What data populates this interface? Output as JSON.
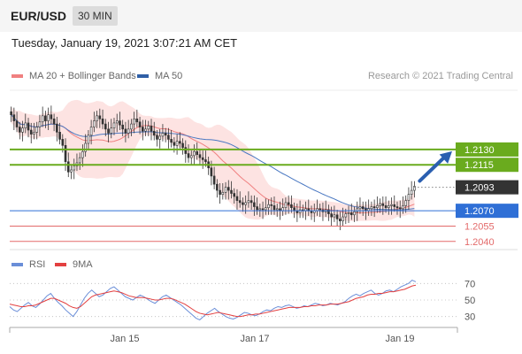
{
  "header": {
    "symbol": "EUR/USD",
    "interval": "30 MIN"
  },
  "timestamp": "Tuesday, January 19, 2021 3:07:21 AM CET",
  "credit": "Research © 2021 Trading Central",
  "colors": {
    "candle_up": "#ffffff",
    "candle_down": "#333333",
    "bollinger_fill": "#fde3e2",
    "ma20": "#f08080",
    "ma50": "#4a78c2",
    "resistance": "#6aab1e",
    "support": "#2f6fd6",
    "minor_level": "#e36a6a",
    "current_price_tag": "#333333",
    "arrow": "#2a5fb0",
    "rsi": "#6a8ed8",
    "rsi_ma": "#e34040"
  },
  "chart_data": [
    {
      "type": "candlestick",
      "legend": [
        {
          "label": "MA 20 + Bollinger Bands",
          "color": "#f08080"
        },
        {
          "label": "MA 50",
          "color": "#2f5fa6"
        }
      ],
      "ylim": [
        1.2032,
        1.2188
      ],
      "x_tick_labels": [
        "Jan 15",
        "Jan 17",
        "Jan 19"
      ],
      "close": [
        1.2164,
        1.2158,
        1.2152,
        1.2147,
        1.2151,
        1.2156,
        1.2149,
        1.2145,
        1.2147,
        1.2152,
        1.2157,
        1.2163,
        1.2158,
        1.2164,
        1.216,
        1.2155,
        1.2147,
        1.214,
        1.2134,
        1.2118,
        1.2108,
        1.211,
        1.2114,
        1.2117,
        1.2122,
        1.2128,
        1.2136,
        1.2144,
        1.2152,
        1.2158,
        1.2163,
        1.216,
        1.2155,
        1.215,
        1.2146,
        1.2151,
        1.2156,
        1.2158,
        1.2154,
        1.215,
        1.2146,
        1.215,
        1.2155,
        1.216,
        1.2157,
        1.2152,
        1.2148,
        1.215,
        1.2153,
        1.2148,
        1.2144,
        1.214,
        1.2143,
        1.2146,
        1.2144,
        1.214,
        1.2137,
        1.2134,
        1.2138,
        1.2136,
        1.2132,
        1.2126,
        1.2122,
        1.2124,
        1.2128,
        1.2125,
        1.2122,
        1.212,
        1.2118,
        1.2112,
        1.2104,
        1.2096,
        1.209,
        1.2086,
        1.2088,
        1.2093,
        1.209,
        1.2087,
        1.2084,
        1.208,
        1.2078,
        1.2076,
        1.2078,
        1.208,
        1.2078,
        1.2074,
        1.2071,
        1.2072,
        1.2071,
        1.2073,
        1.2076,
        1.2075,
        1.2071,
        1.2072,
        1.207,
        1.2073,
        1.2078,
        1.2076,
        1.2073,
        1.207,
        1.2068,
        1.2071,
        1.207,
        1.2072,
        1.207,
        1.2068,
        1.207,
        1.2072,
        1.2071,
        1.2069,
        1.2071,
        1.2067,
        1.2064,
        1.2066,
        1.2062,
        1.206,
        1.2064,
        1.2067,
        1.2068,
        1.2066,
        1.2069,
        1.2072,
        1.2074,
        1.2072,
        1.207,
        1.2072,
        1.2074,
        1.2073,
        1.2075,
        1.2077,
        1.2075,
        1.2073,
        1.2075,
        1.2076,
        1.2074,
        1.2073,
        1.2072,
        1.2075,
        1.208,
        1.2086,
        1.209,
        1.2094
      ],
      "levels": [
        {
          "price": "1.2130",
          "kind": "resistance"
        },
        {
          "price": "1.2115",
          "kind": "resistance"
        },
        {
          "price": "1.2093",
          "kind": "last"
        },
        {
          "price": "1.2070",
          "kind": "support"
        },
        {
          "price": "1.2055",
          "kind": "minor"
        },
        {
          "price": "1.2040",
          "kind": "minor"
        }
      ]
    },
    {
      "type": "line",
      "panel": "RSI",
      "legend": [
        {
          "label": "RSI",
          "color": "#6a8ed8"
        },
        {
          "label": "9MA",
          "color": "#e34040"
        }
      ],
      "ylim": [
        20,
        80
      ],
      "y_ticks": [
        "70",
        "50",
        "30"
      ],
      "rsi": [
        42,
        38,
        36,
        40,
        44,
        47,
        43,
        41,
        45,
        50,
        55,
        58,
        52,
        47,
        43,
        38,
        34,
        30,
        36,
        44,
        52,
        58,
        62,
        58,
        54,
        56,
        60,
        64,
        66,
        62,
        58,
        54,
        52,
        50,
        53,
        56,
        54,
        51,
        48,
        46,
        50,
        54,
        56,
        53,
        50,
        47,
        44,
        40,
        36,
        32,
        28,
        26,
        30,
        34,
        37,
        40,
        36,
        33,
        30,
        28,
        27,
        29,
        32,
        35,
        34,
        32,
        31,
        33,
        36,
        38,
        37,
        40,
        42,
        41,
        43,
        44,
        42,
        40,
        41,
        43,
        42,
        44,
        46,
        45,
        43,
        44,
        46,
        45,
        44,
        46,
        48,
        52,
        55,
        57,
        55,
        58,
        60,
        62,
        58,
        56,
        58,
        61,
        62,
        60,
        63,
        66,
        68,
        70,
        74,
        72
      ],
      "rsi_ma": [
        45,
        44,
        43,
        42,
        42,
        43,
        43,
        44,
        46,
        48,
        50,
        52,
        52,
        50,
        48,
        46,
        43,
        41,
        40,
        42,
        46,
        50,
        54,
        56,
        57,
        58,
        59,
        60,
        61,
        60,
        59,
        57,
        55,
        54,
        53,
        53,
        53,
        52,
        51,
        50,
        50,
        51,
        52,
        52,
        51,
        49,
        47,
        45,
        42,
        39,
        36,
        34,
        33,
        32,
        33,
        34,
        35,
        34,
        33,
        32,
        31,
        30,
        30,
        31,
        32,
        32,
        33,
        33,
        34,
        35,
        36,
        37,
        38,
        39,
        40,
        41,
        41,
        41,
        41,
        42,
        42,
        43,
        43,
        44,
        44,
        44,
        45,
        45,
        45,
        46,
        47,
        48,
        50,
        52,
        53,
        54,
        56,
        57,
        57,
        58,
        58,
        59,
        60,
        60,
        61,
        62,
        63,
        65,
        67,
        68
      ]
    }
  ]
}
